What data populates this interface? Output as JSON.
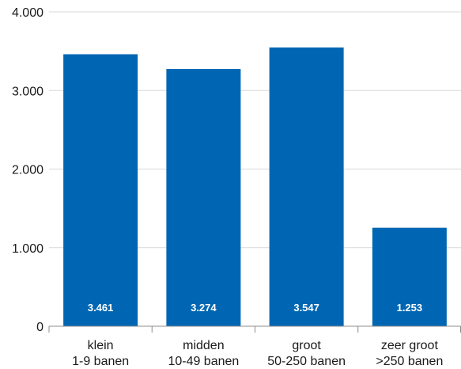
{
  "chart_data": {
    "type": "bar",
    "categories": [
      [
        "klein",
        "1-9 banen"
      ],
      [
        "midden",
        "10-49 banen"
      ],
      [
        "groot",
        "50-250 banen"
      ],
      [
        "zeer groot",
        ">250 banen"
      ]
    ],
    "values": [
      3461,
      3274,
      3547,
      1253
    ],
    "data_labels": [
      "3.461",
      "3.274",
      "3.547",
      "1.253"
    ],
    "y_ticks": [
      0,
      1000,
      2000,
      3000,
      4000
    ],
    "y_tick_labels": [
      "0",
      "1.000",
      "2.000",
      "3.000",
      "4.000"
    ],
    "ylim": [
      0,
      4000
    ],
    "grid": true,
    "title": "",
    "xlabel": "",
    "ylabel": "",
    "colors": {
      "bar": "#0066b3",
      "grid": "#d9d9d9",
      "axis": "#8c8c8c"
    }
  }
}
